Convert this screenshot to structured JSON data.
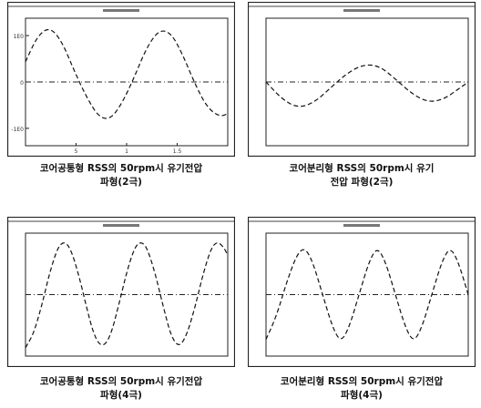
{
  "chart_data": [
    {
      "type": "line",
      "y_ticks": [
        "1E0",
        "0",
        "-1E0"
      ],
      "x_ticks": [
        "5",
        "1",
        "1.5"
      ],
      "series": [
        {
          "style": "dashed",
          "points": [
            [
              0.0,
              0.35
            ],
            [
              0.06,
              0.8
            ],
            [
              0.12,
              0.95
            ],
            [
              0.18,
              0.7
            ],
            [
              0.24,
              0.2
            ],
            [
              0.3,
              -0.25
            ],
            [
              0.36,
              -0.6
            ],
            [
              0.42,
              -0.65
            ],
            [
              0.48,
              -0.35
            ],
            [
              0.54,
              0.1
            ],
            [
              0.6,
              0.6
            ],
            [
              0.66,
              0.9
            ],
            [
              0.72,
              0.85
            ],
            [
              0.78,
              0.45
            ],
            [
              0.84,
              -0.05
            ],
            [
              0.9,
              -0.45
            ],
            [
              0.96,
              -0.6
            ],
            [
              1.0,
              -0.55
            ]
          ]
        }
      ],
      "zero_line": true,
      "caption": [
        "코어공통형 RSS의 50rpm시 유기전압",
        "파형(2극)"
      ]
    },
    {
      "type": "line",
      "y_ticks": [],
      "x_ticks": [],
      "series": [
        {
          "style": "dashed",
          "points": [
            [
              0.0,
              0.0
            ],
            [
              0.08,
              -0.3
            ],
            [
              0.16,
              -0.45
            ],
            [
              0.24,
              -0.35
            ],
            [
              0.32,
              -0.1
            ],
            [
              0.4,
              0.15
            ],
            [
              0.48,
              0.3
            ],
            [
              0.56,
              0.28
            ],
            [
              0.64,
              0.05
            ],
            [
              0.72,
              -0.2
            ],
            [
              0.8,
              -0.35
            ],
            [
              0.88,
              -0.3
            ],
            [
              0.96,
              -0.1
            ],
            [
              1.0,
              0.0
            ]
          ]
        }
      ],
      "zero_line": true,
      "caption": [
        "코어분리형 RSS의 50rpm시 유기",
        "전압 파형(2극)"
      ]
    },
    {
      "type": "line",
      "y_ticks": [],
      "x_ticks": [],
      "series": [
        {
          "style": "dashed",
          "points": [
            [
              0.0,
              -0.95
            ],
            [
              0.04,
              -0.7
            ],
            [
              0.08,
              -0.2
            ],
            [
              0.12,
              0.4
            ],
            [
              0.16,
              0.85
            ],
            [
              0.19,
              0.95
            ],
            [
              0.22,
              0.85
            ],
            [
              0.26,
              0.4
            ],
            [
              0.3,
              -0.2
            ],
            [
              0.34,
              -0.75
            ],
            [
              0.38,
              -0.95
            ],
            [
              0.42,
              -0.75
            ],
            [
              0.46,
              -0.2
            ],
            [
              0.5,
              0.4
            ],
            [
              0.54,
              0.85
            ],
            [
              0.57,
              0.95
            ],
            [
              0.6,
              0.85
            ],
            [
              0.64,
              0.4
            ],
            [
              0.68,
              -0.2
            ],
            [
              0.72,
              -0.75
            ],
            [
              0.76,
              -0.95
            ],
            [
              0.8,
              -0.7
            ],
            [
              0.84,
              -0.2
            ],
            [
              0.88,
              0.4
            ],
            [
              0.92,
              0.85
            ],
            [
              0.95,
              0.95
            ],
            [
              0.98,
              0.85
            ],
            [
              1.0,
              0.7
            ]
          ]
        }
      ],
      "zero_line": true,
      "caption": [
        "코어공통형 RSS의 50rpm시 유기전압",
        "파형(4극)"
      ]
    },
    {
      "type": "line",
      "y_ticks": [],
      "x_ticks": [],
      "series": [
        {
          "style": "dashed",
          "points": [
            [
              0.0,
              -0.8
            ],
            [
              0.05,
              -0.4
            ],
            [
              0.1,
              0.2
            ],
            [
              0.15,
              0.7
            ],
            [
              0.19,
              0.85
            ],
            [
              0.23,
              0.6
            ],
            [
              0.28,
              0.0
            ],
            [
              0.33,
              -0.6
            ],
            [
              0.37,
              -0.85
            ],
            [
              0.41,
              -0.6
            ],
            [
              0.46,
              0.0
            ],
            [
              0.51,
              0.6
            ],
            [
              0.55,
              0.85
            ],
            [
              0.59,
              0.6
            ],
            [
              0.64,
              0.0
            ],
            [
              0.69,
              -0.6
            ],
            [
              0.73,
              -0.85
            ],
            [
              0.77,
              -0.6
            ],
            [
              0.82,
              0.0
            ],
            [
              0.87,
              0.6
            ],
            [
              0.91,
              0.85
            ],
            [
              0.95,
              0.6
            ],
            [
              1.0,
              0.0
            ]
          ]
        }
      ],
      "zero_line": true,
      "caption": [
        "코어분리형 RSS의 50rpm시 유기전압",
        "파형(4극)"
      ]
    }
  ]
}
